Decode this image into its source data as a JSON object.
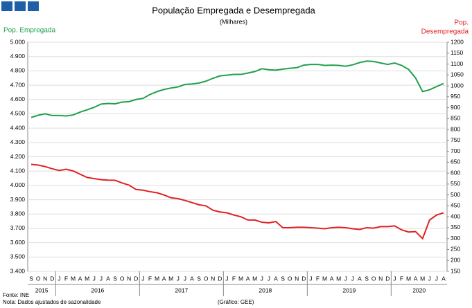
{
  "chart_data": {
    "type": "line",
    "title": "População Empregada e Desempregada",
    "subtitle": "(Milhares)",
    "ylabel": "Pop. Empregada",
    "y2label_lines": [
      "Pop.",
      "Desempregada"
    ],
    "source": "Fonte: INE",
    "note": "Nota: Dados ajustados de sazonalidade",
    "credit": "(Gráfico: GEE)",
    "categories": [
      "S",
      "O",
      "N",
      "D",
      "J",
      "F",
      "M",
      "A",
      "M",
      "J",
      "J",
      "A",
      "S",
      "O",
      "N",
      "D",
      "J",
      "F",
      "M",
      "A",
      "M",
      "J",
      "J",
      "A",
      "S",
      "O",
      "N",
      "D",
      "J",
      "F",
      "M",
      "A",
      "M",
      "J",
      "J",
      "A",
      "S",
      "O",
      "N",
      "D",
      "J",
      "F",
      "M",
      "A",
      "M",
      "J",
      "J",
      "A",
      "S",
      "O",
      "N",
      "D",
      "J",
      "F",
      "M",
      "A",
      "M",
      "J",
      "J",
      "A"
    ],
    "years": [
      "2015",
      "2016",
      "2017",
      "2018",
      "2019",
      "2020"
    ],
    "series": [
      {
        "name": "Pop. Empregada",
        "color": "#1fa04a",
        "axis": "y",
        "values": [
          4475,
          4490,
          4500,
          4488,
          4488,
          4485,
          4492,
          4512,
          4528,
          4545,
          4568,
          4572,
          4570,
          4582,
          4585,
          4600,
          4608,
          4635,
          4655,
          4670,
          4680,
          4688,
          4705,
          4708,
          4715,
          4728,
          4748,
          4765,
          4770,
          4775,
          4775,
          4785,
          4795,
          4815,
          4808,
          4805,
          4812,
          4818,
          4822,
          4840,
          4845,
          4845,
          4838,
          4840,
          4838,
          4832,
          4842,
          4858,
          4868,
          4865,
          4855,
          4845,
          4855,
          4838,
          4810,
          4750,
          4655,
          4668,
          4690,
          4712
        ]
      },
      {
        "name": "Pop. Desempregada",
        "color": "#e02020",
        "axis": "y2",
        "values": [
          640,
          637,
          630,
          620,
          612,
          618,
          610,
          595,
          580,
          575,
          570,
          568,
          567,
          555,
          545,
          525,
          522,
          515,
          510,
          500,
          487,
          483,
          475,
          465,
          455,
          450,
          430,
          422,
          418,
          408,
          400,
          385,
          385,
          375,
          372,
          378,
          350,
          350,
          352,
          352,
          350,
          348,
          345,
          350,
          352,
          350,
          345,
          342,
          350,
          348,
          355,
          355,
          358,
          340,
          330,
          332,
          300,
          385,
          408,
          418
        ]
      }
    ],
    "ylim": [
      3400,
      5000
    ],
    "yticks": [
      {
        "value": 3400,
        "label": "3.400"
      },
      {
        "value": 3500,
        "label": "3.500"
      },
      {
        "value": 3600,
        "label": "3.600"
      },
      {
        "value": 3700,
        "label": "3.700"
      },
      {
        "value": 3800,
        "label": "3.800"
      },
      {
        "value": 3900,
        "label": "3.900"
      },
      {
        "value": 4000,
        "label": "4.000"
      },
      {
        "value": 4100,
        "label": "4.100"
      },
      {
        "value": 4200,
        "label": "4.200"
      },
      {
        "value": 4300,
        "label": "4.300"
      },
      {
        "value": 4400,
        "label": "4.400"
      },
      {
        "value": 4500,
        "label": "4.500"
      },
      {
        "value": 4600,
        "label": "4.600"
      },
      {
        "value": 4700,
        "label": "4.700"
      },
      {
        "value": 4800,
        "label": "4.800"
      },
      {
        "value": 4900,
        "label": "4.900"
      },
      {
        "value": 5000,
        "label": "5.000"
      }
    ],
    "y2lim": [
      150,
      1200
    ],
    "y2ticks": [
      150,
      200,
      250,
      300,
      350,
      400,
      450,
      500,
      550,
      600,
      650,
      700,
      750,
      800,
      850,
      900,
      950,
      1000,
      1050,
      1100,
      1150,
      1200
    ],
    "grid": true
  }
}
